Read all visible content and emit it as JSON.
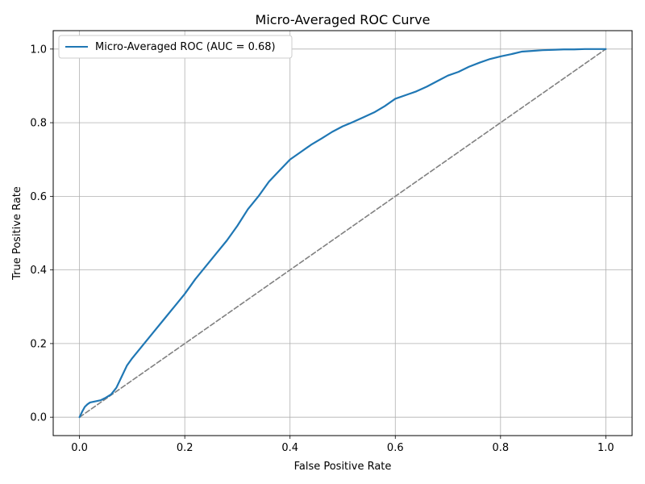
{
  "chart_data": {
    "type": "line",
    "title": "Micro-Averaged ROC Curve",
    "xlabel": "False Positive Rate",
    "ylabel": "True Positive Rate",
    "xlim": [
      -0.05,
      1.05
    ],
    "ylim": [
      -0.05,
      1.05
    ],
    "xticks": [
      0.0,
      0.2,
      0.4,
      0.6,
      0.8,
      1.0
    ],
    "yticks": [
      0.0,
      0.2,
      0.4,
      0.6,
      0.8,
      1.0
    ],
    "xtick_labels": [
      "0.0",
      "0.2",
      "0.4",
      "0.6",
      "0.8",
      "1.0"
    ],
    "ytick_labels": [
      "0.0",
      "0.2",
      "0.4",
      "0.6",
      "0.8",
      "1.0"
    ],
    "grid": true,
    "legend_position": "top-left",
    "series": [
      {
        "name": "Micro-Averaged ROC (AUC = 0.68)",
        "color": "#1f77b4",
        "style": "solid",
        "x": [
          0.0,
          0.005,
          0.01,
          0.015,
          0.02,
          0.03,
          0.04,
          0.05,
          0.06,
          0.07,
          0.08,
          0.09,
          0.1,
          0.12,
          0.14,
          0.16,
          0.18,
          0.2,
          0.22,
          0.24,
          0.26,
          0.28,
          0.3,
          0.32,
          0.34,
          0.36,
          0.38,
          0.4,
          0.42,
          0.44,
          0.46,
          0.48,
          0.5,
          0.52,
          0.54,
          0.56,
          0.58,
          0.6,
          0.62,
          0.64,
          0.66,
          0.68,
          0.7,
          0.72,
          0.74,
          0.76,
          0.78,
          0.8,
          0.82,
          0.84,
          0.86,
          0.88,
          0.9,
          0.92,
          0.94,
          0.96,
          0.98,
          1.0
        ],
        "y": [
          0.0,
          0.015,
          0.028,
          0.035,
          0.04,
          0.043,
          0.046,
          0.053,
          0.062,
          0.08,
          0.11,
          0.14,
          0.16,
          0.195,
          0.23,
          0.265,
          0.3,
          0.335,
          0.375,
          0.41,
          0.445,
          0.48,
          0.52,
          0.565,
          0.6,
          0.64,
          0.67,
          0.7,
          0.72,
          0.74,
          0.757,
          0.775,
          0.79,
          0.802,
          0.815,
          0.828,
          0.845,
          0.865,
          0.875,
          0.885,
          0.898,
          0.913,
          0.928,
          0.938,
          0.952,
          0.963,
          0.973,
          0.98,
          0.986,
          0.993,
          0.995,
          0.997,
          0.998,
          0.999,
          0.999,
          1.0,
          1.0,
          1.0
        ]
      },
      {
        "name": "",
        "color": "#808080",
        "style": "dashed",
        "x": [
          0.0,
          1.0
        ],
        "y": [
          0.0,
          1.0
        ]
      }
    ]
  }
}
